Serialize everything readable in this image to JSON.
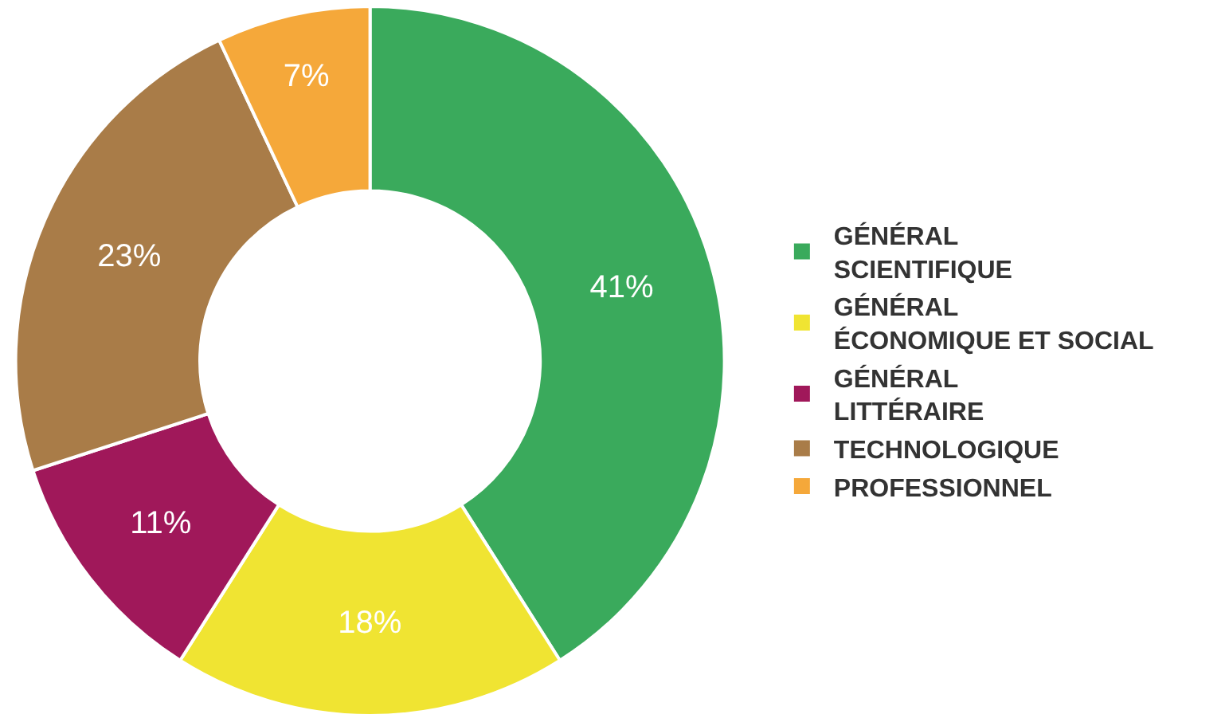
{
  "chart_data": {
    "type": "donut",
    "categories": [
      "GÉNÉRAL SCIENTIFIQUE",
      "GÉNÉRAL ÉCONOMIQUE ET SOCIAL",
      "GÉNÉRAL LITTÉRAIRE",
      "TECHNOLOGIQUE",
      "PROFESSIONNEL"
    ],
    "values": [
      41,
      18,
      11,
      23,
      7
    ],
    "value_labels": [
      "41%",
      "18%",
      "11%",
      "23%",
      "7%"
    ],
    "colors": [
      "#3aaa5c",
      "#f0e432",
      "#a0185a",
      "#a97c48",
      "#f5a83a"
    ],
    "legend": "right"
  }
}
